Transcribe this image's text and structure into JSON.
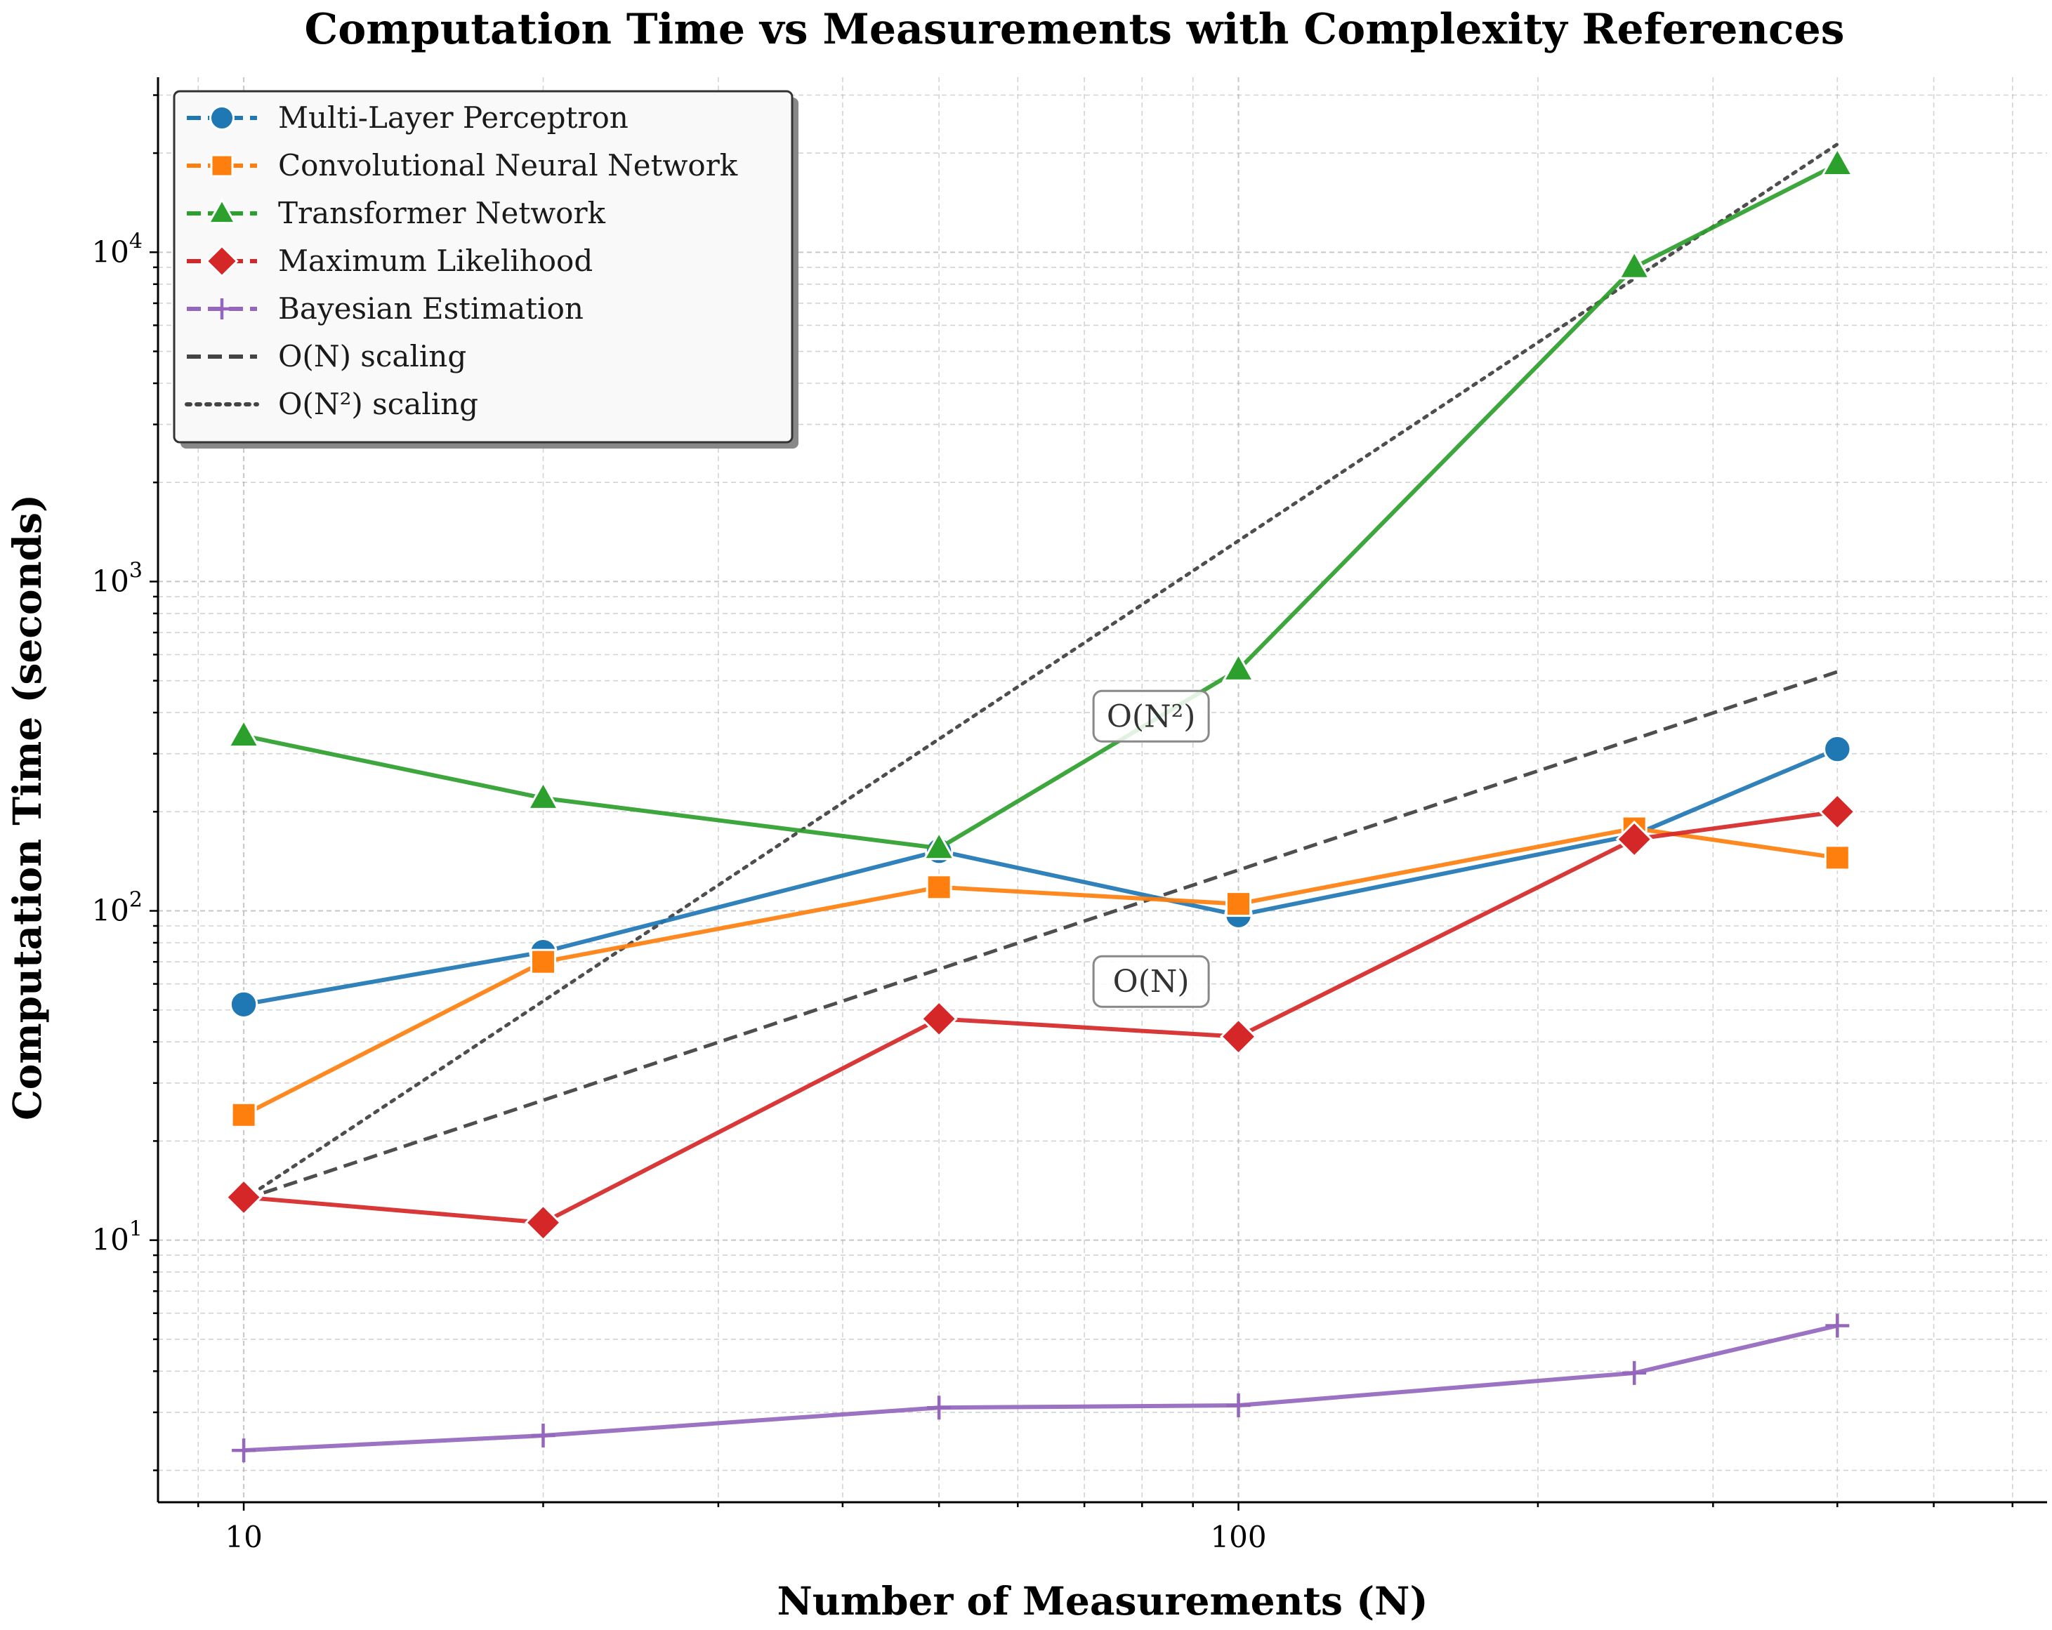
{
  "chart_data": {
    "type": "line",
    "title": "Computation Time vs Measurements with Complexity References",
    "xlabel": "Number of Measurements (N)",
    "ylabel": "Computation Time (seconds)",
    "xscale": "log",
    "yscale": "log",
    "xlim": [
      8.2,
      650
    ],
    "ylim": [
      1.6,
      34000
    ],
    "x_ticks": [
      {
        "value": 10,
        "label": "10"
      },
      {
        "value": 100,
        "label": "100"
      }
    ],
    "y_ticks": [
      {
        "value": 10,
        "base": "10",
        "exp": "1"
      },
      {
        "value": 100,
        "base": "10",
        "exp": "2"
      },
      {
        "value": 1000,
        "base": "10",
        "exp": "3"
      },
      {
        "value": 10000,
        "base": "10",
        "exp": "4"
      }
    ],
    "grid": true,
    "legend_position": "top-left",
    "x": [
      10,
      20,
      50,
      100,
      250,
      400
    ],
    "series": [
      {
        "name": "Multi-Layer Perceptron",
        "color": "#1f77b4",
        "marker": "circle",
        "values": [
          52,
          75,
          152,
          97,
          170,
          310
        ]
      },
      {
        "name": "Convolutional Neural Network",
        "color": "#ff7f0e",
        "marker": "square",
        "values": [
          24,
          70,
          118,
          105,
          178,
          145
        ]
      },
      {
        "name": "Transformer Network",
        "color": "#2ca02c",
        "marker": "triangle",
        "values": [
          340,
          220,
          155,
          540,
          9000,
          18500
        ]
      },
      {
        "name": "Maximum Likelihood",
        "color": "#d62728",
        "marker": "diamond",
        "values": [
          13.5,
          11.3,
          47,
          41.5,
          165,
          200
        ]
      },
      {
        "name": "Bayesian Estimation",
        "color": "#9467bd",
        "marker": "plus",
        "values": [
          2.3,
          2.55,
          3.1,
          3.15,
          3.95,
          5.5
        ]
      }
    ],
    "references": [
      {
        "name": "O(N) scaling",
        "color": "#444444",
        "dash": "dashed",
        "x": [
          10,
          400
        ],
        "values": [
          13.3,
          532
        ]
      },
      {
        "name": "O(N²) scaling",
        "color": "#444444",
        "dash": "dotted",
        "x": [
          10,
          400
        ],
        "values": [
          13.3,
          21280
        ]
      }
    ],
    "annotations": [
      {
        "text": "O(N²)",
        "x": 70,
        "y": 390
      },
      {
        "text": "O(N)",
        "x": 70,
        "y": 61
      }
    ]
  }
}
